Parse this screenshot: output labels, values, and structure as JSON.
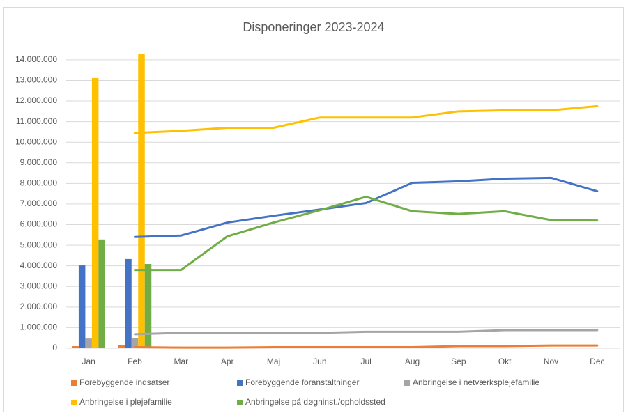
{
  "chart_data": {
    "type": "bar",
    "title": "Disponeringer 2023-2024",
    "categories": [
      "Jan",
      "Feb",
      "Mar",
      "Apr",
      "Maj",
      "Jun",
      "Jul",
      "Aug",
      "Sep",
      "Okt",
      "Nov",
      "Dec"
    ],
    "series": [
      {
        "name": "Forebyggende indsatser",
        "color": "#ed7d31",
        "values": [
          100000,
          150000,
          null,
          null,
          null,
          null,
          null,
          null,
          null,
          null,
          null,
          null
        ],
        "line_values": [
          null,
          50000,
          30000,
          30000,
          50000,
          50000,
          50000,
          50000,
          100000,
          100000,
          130000,
          130000
        ]
      },
      {
        "name": "Forebyggende foranstaltninger",
        "color": "#4472c4",
        "values": [
          4020000,
          4330000,
          null,
          null,
          null,
          null,
          null,
          null,
          null,
          null,
          null,
          null
        ],
        "line_values": [
          null,
          5400000,
          5470000,
          6100000,
          6430000,
          6730000,
          7050000,
          8030000,
          8100000,
          8230000,
          8270000,
          7620000
        ]
      },
      {
        "name": "Anbringelse i netværksplejefamilie",
        "color": "#a5a5a5",
        "values": [
          470000,
          480000,
          null,
          null,
          null,
          null,
          null,
          null,
          null,
          null,
          null,
          null
        ],
        "line_values": [
          null,
          680000,
          750000,
          750000,
          750000,
          750000,
          800000,
          800000,
          800000,
          880000,
          880000,
          880000
        ]
      },
      {
        "name": "Anbringelse i plejefamilie",
        "color": "#ffc000",
        "values": [
          13120000,
          14300000,
          null,
          null,
          null,
          null,
          null,
          null,
          null,
          null,
          null,
          null
        ],
        "line_values": [
          null,
          10450000,
          10550000,
          10700000,
          10700000,
          11200000,
          11200000,
          11200000,
          11500000,
          11550000,
          11550000,
          11750000
        ]
      },
      {
        "name": "Anbringelse på døgninst./opholdssted",
        "color": "#70ad47",
        "values": [
          5280000,
          4090000,
          null,
          null,
          null,
          null,
          null,
          null,
          null,
          null,
          null,
          null
        ],
        "line_values": [
          null,
          3800000,
          3800000,
          5430000,
          6100000,
          6700000,
          7350000,
          6650000,
          6520000,
          6650000,
          6220000,
          6200000
        ]
      }
    ],
    "ylim": [
      0,
      14300000
    ],
    "yticks": [
      0,
      {
        "value": 1000000,
        "label": "1.000.000"
      },
      {
        "value": 2000000,
        "label": "2.000.000"
      },
      {
        "value": 3000000,
        "label": "3.000.000"
      },
      {
        "value": 4000000,
        "label": "4.000.000"
      },
      {
        "value": 5000000,
        "label": "5.000.000"
      },
      {
        "value": 6000000,
        "label": "6.000.000"
      },
      {
        "value": 7000000,
        "label": "7.000.000"
      },
      {
        "value": 8000000,
        "label": "8.000.000"
      },
      {
        "value": 9000000,
        "label": "9.000.000"
      },
      {
        "value": 10000000,
        "label": "10.000.000"
      },
      {
        "value": 11000000,
        "label": "11.000.000"
      },
      {
        "value": 12000000,
        "label": "12.000.000"
      },
      {
        "value": 13000000,
        "label": "13.000.000"
      },
      {
        "value": 14000000,
        "label": "14.000.000"
      }
    ],
    "grid": true
  }
}
